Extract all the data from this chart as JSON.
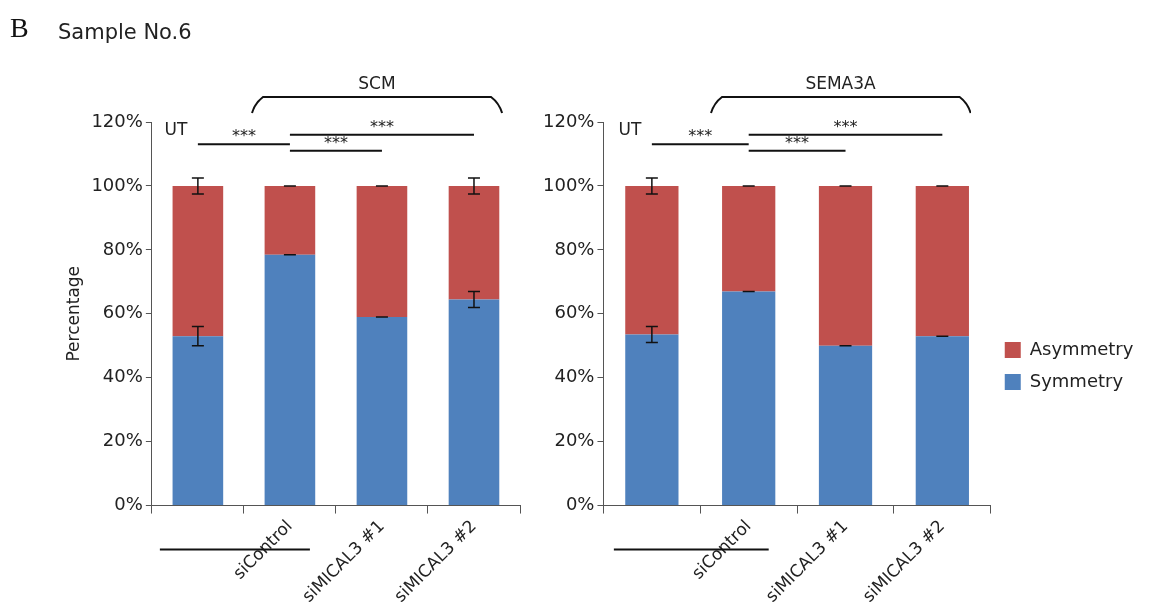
{
  "chart_data": [
    {
      "type": "bar",
      "title": "Sample No.6",
      "ylabel": "Percentage",
      "categories": [
        null,
        "siControl",
        "siMICAL3 #1",
        "siMICAL3 #2"
      ],
      "stacked": true,
      "series": [
        {
          "color": "#4f81bd",
          "values": [
            53,
            78.5,
            59,
            64.5
          ],
          "errors": [
            3,
            0,
            0,
            2.5
          ]
        },
        {
          "color": "#c0504d",
          "values": [
            47,
            21.5,
            41,
            35.5
          ],
          "errors": [
            2.5,
            0,
            0,
            2.5
          ]
        }
      ],
      "ylim": [
        0,
        120
      ],
      "yticks": [
        {
          "value": 0,
          "label": "0%"
        },
        {
          "value": 20,
          "label": "20%"
        },
        {
          "value": 40,
          "label": "40%"
        },
        {
          "value": 60,
          "label": "60%"
        },
        {
          "value": 80,
          "label": "80%"
        },
        {
          "value": 100,
          "label": "100%"
        },
        {
          "value": 120,
          "label": "120%"
        }
      ],
      "annotations": [
        "B",
        "UT",
        "SCM",
        "***",
        "***",
        "***"
      ]
    },
    {
      "type": "bar",
      "categories": [
        null,
        "siControl",
        "siMICAL3 #1",
        "siMICAL3 #2"
      ],
      "stacked": true,
      "legend": "right",
      "series": [
        {
          "name": "Symmetry",
          "color": "#4f81bd",
          "values": [
            53.5,
            67,
            50,
            53
          ],
          "errors": [
            2.5,
            0,
            0,
            0
          ]
        },
        {
          "name": "Asymmetry",
          "color": "#c0504d",
          "values": [
            46.5,
            33,
            50,
            47
          ],
          "errors": [
            2.5,
            0,
            0,
            0
          ]
        }
      ],
      "ylim": [
        0,
        120
      ],
      "yticks": [
        {
          "value": 0,
          "label": "0%"
        },
        {
          "value": 20,
          "label": "20%"
        },
        {
          "value": 40,
          "label": "40%"
        },
        {
          "value": 60,
          "label": "60%"
        },
        {
          "value": 80,
          "label": "80%"
        },
        {
          "value": 100,
          "label": "100%"
        },
        {
          "value": 120,
          "label": "120%"
        }
      ],
      "annotations": [
        "UT",
        "SEMA3A",
        "***",
        "***",
        "***"
      ]
    }
  ]
}
